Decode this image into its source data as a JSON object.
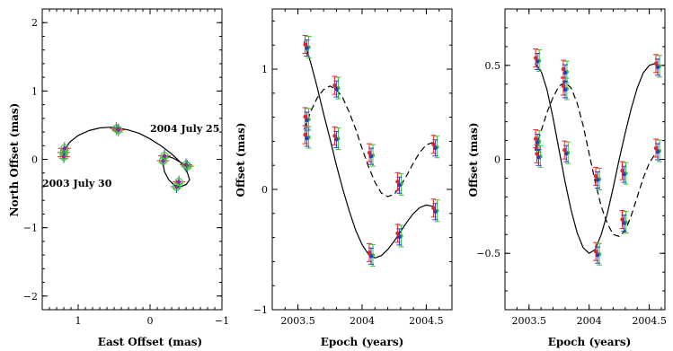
{
  "colors": {
    "red": "#e8242a",
    "green": "#3bbf3b",
    "blue": "#2a3fb8",
    "purple": "#8a2aa0",
    "frame": "#000000"
  },
  "chart_data": [
    {
      "type": "scatter",
      "xlabel": "East Offset (mas)",
      "ylabel": "North Offset (mas)",
      "xlim": [
        1.5,
        -1
      ],
      "ylim": [
        -2.2,
        2.2
      ],
      "xticks": [
        1,
        0,
        -1
      ],
      "yticks": [
        -2,
        -1,
        0,
        1,
        2
      ],
      "annotations": [
        {
          "text": "2003 July 30",
          "x": 1.5,
          "y": -0.4
        },
        {
          "text": "2004 July 25",
          "x": 0.0,
          "y": 0.4
        }
      ],
      "orbit_curve": {
        "x": [
          1.2,
          1.12,
          1.0,
          0.85,
          0.7,
          0.55,
          0.45,
          0.3,
          0.15,
          0.0,
          -0.15,
          -0.3,
          -0.43,
          -0.52,
          -0.55,
          -0.5,
          -0.42,
          -0.34,
          -0.26,
          -0.2,
          -0.18,
          -0.22,
          -0.32,
          -0.45,
          -0.52
        ],
        "y": [
          0.12,
          0.25,
          0.35,
          0.42,
          0.46,
          0.47,
          0.46,
          0.43,
          0.38,
          0.3,
          0.2,
          0.08,
          -0.05,
          -0.2,
          -0.3,
          -0.37,
          -0.4,
          -0.38,
          -0.3,
          -0.18,
          -0.05,
          0.05,
          0.02,
          -0.06,
          -0.1
        ]
      },
      "points": [
        {
          "x": 1.2,
          "y": 0.1
        },
        {
          "x": 1.2,
          "y": 0.04
        },
        {
          "x": 1.19,
          "y": 0.16
        },
        {
          "x": 0.47,
          "y": 0.45
        },
        {
          "x": 0.44,
          "y": 0.43
        },
        {
          "x": -0.18,
          "y": -0.02
        },
        {
          "x": -0.2,
          "y": 0.05
        },
        {
          "x": -0.37,
          "y": -0.4
        },
        {
          "x": -0.4,
          "y": -0.33
        },
        {
          "x": -0.52,
          "y": -0.1
        },
        {
          "x": -0.5,
          "y": -0.08
        }
      ]
    },
    {
      "type": "line",
      "xlabel": "Epoch (years)",
      "ylabel": "Offset (mas)",
      "xlim": [
        2003.3,
        2004.7
      ],
      "ylim": [
        -1,
        1.5
      ],
      "xticks": [
        2003.5,
        2004,
        2004.5
      ],
      "xtick_labels": [
        "2003.5",
        "2004",
        "2004.5"
      ],
      "yticks": [
        -1,
        0,
        1
      ],
      "series": [
        {
          "style": "solid",
          "x": [
            2003.55,
            2003.6,
            2003.65,
            2003.7,
            2003.75,
            2003.8,
            2003.85,
            2003.9,
            2003.95,
            2004.0,
            2004.05,
            2004.1,
            2004.15,
            2004.2,
            2004.25,
            2004.3,
            2004.35,
            2004.4,
            2004.45,
            2004.5,
            2004.55,
            2004.58
          ],
          "y": [
            1.23,
            1.05,
            0.85,
            0.63,
            0.42,
            0.2,
            0.0,
            -0.18,
            -0.34,
            -0.46,
            -0.54,
            -0.57,
            -0.55,
            -0.5,
            -0.43,
            -0.35,
            -0.27,
            -0.2,
            -0.15,
            -0.13,
            -0.14,
            -0.18
          ]
        },
        {
          "style": "dashed",
          "x": [
            2003.55,
            2003.6,
            2003.65,
            2003.7,
            2003.75,
            2003.8,
            2003.85,
            2003.9,
            2003.95,
            2004.0,
            2004.05,
            2004.1,
            2004.15,
            2004.2,
            2004.25,
            2004.3,
            2004.35,
            2004.4,
            2004.45,
            2004.5,
            2004.55,
            2004.58
          ],
          "y": [
            0.5,
            0.65,
            0.76,
            0.83,
            0.86,
            0.83,
            0.76,
            0.64,
            0.5,
            0.34,
            0.19,
            0.06,
            -0.03,
            -0.06,
            -0.04,
            0.03,
            0.12,
            0.22,
            0.31,
            0.37,
            0.39,
            0.38
          ]
        }
      ],
      "points": [
        {
          "x": 2003.57,
          "y": 1.19
        },
        {
          "x": 2003.57,
          "y": 0.59
        },
        {
          "x": 2003.57,
          "y": 0.44
        },
        {
          "x": 2003.8,
          "y": 0.85
        },
        {
          "x": 2003.8,
          "y": 0.43
        },
        {
          "x": 2004.07,
          "y": 0.29
        },
        {
          "x": 2004.07,
          "y": -0.54
        },
        {
          "x": 2004.29,
          "y": 0.05
        },
        {
          "x": 2004.29,
          "y": -0.38
        },
        {
          "x": 2004.57,
          "y": 0.36
        },
        {
          "x": 2004.57,
          "y": -0.17
        }
      ]
    },
    {
      "type": "line",
      "xlabel": "Epoch (years)",
      "ylabel": "Offset (mas)",
      "xlim": [
        2003.3,
        2004.63
      ],
      "ylim": [
        -0.8,
        0.8
      ],
      "xticks": [
        2003.5,
        2004,
        2004.5
      ],
      "xtick_labels": [
        "2003.5",
        "2004",
        "2004.5"
      ],
      "yticks": [
        -0.5,
        0,
        0.5
      ],
      "series": [
        {
          "style": "solid",
          "x": [
            2003.55,
            2003.6,
            2003.65,
            2003.7,
            2003.75,
            2003.8,
            2003.85,
            2003.9,
            2003.95,
            2004.0,
            2004.05,
            2004.1,
            2004.15,
            2004.2,
            2004.25,
            2004.3,
            2004.35,
            2004.4,
            2004.45,
            2004.5,
            2004.55,
            2004.58
          ],
          "y": [
            0.51,
            0.47,
            0.37,
            0.22,
            0.05,
            -0.12,
            -0.27,
            -0.39,
            -0.47,
            -0.5,
            -0.48,
            -0.4,
            -0.29,
            -0.15,
            0.0,
            0.14,
            0.27,
            0.38,
            0.46,
            0.5,
            0.51,
            0.5
          ]
        },
        {
          "style": "dashed",
          "x": [
            2003.55,
            2003.6,
            2003.65,
            2003.7,
            2003.75,
            2003.8,
            2003.85,
            2003.9,
            2003.95,
            2004.0,
            2004.05,
            2004.1,
            2004.15,
            2004.2,
            2004.25,
            2004.3,
            2004.35,
            2004.4,
            2004.45,
            2004.5,
            2004.55,
            2004.58
          ],
          "y": [
            0.05,
            0.15,
            0.25,
            0.33,
            0.39,
            0.41,
            0.38,
            0.3,
            0.18,
            0.03,
            -0.12,
            -0.25,
            -0.34,
            -0.4,
            -0.41,
            -0.38,
            -0.3,
            -0.2,
            -0.1,
            -0.02,
            0.03,
            0.05
          ]
        }
      ],
      "points": [
        {
          "x": 2003.57,
          "y": 0.53
        },
        {
          "x": 2003.57,
          "y": 0.1
        },
        {
          "x": 2003.58,
          "y": 0.02
        },
        {
          "x": 2003.8,
          "y": 0.47
        },
        {
          "x": 2003.8,
          "y": 0.38
        },
        {
          "x": 2003.81,
          "y": 0.04
        },
        {
          "x": 2004.07,
          "y": -0.1
        },
        {
          "x": 2004.07,
          "y": -0.5
        },
        {
          "x": 2004.29,
          "y": -0.07
        },
        {
          "x": 2004.29,
          "y": -0.33
        },
        {
          "x": 2004.57,
          "y": 0.5
        },
        {
          "x": 2004.57,
          "y": 0.05
        }
      ]
    }
  ]
}
